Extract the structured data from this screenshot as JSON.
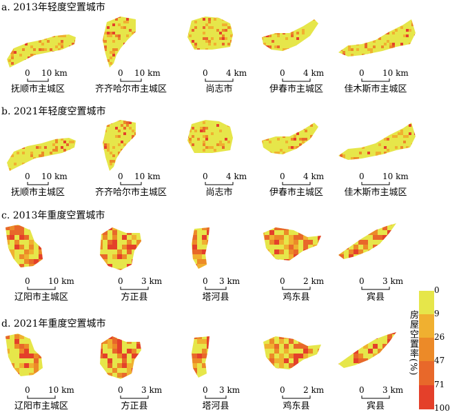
{
  "sections": [
    {
      "title": "a. 2013年轻度空置城市"
    },
    {
      "title": "b. 2021年轻度空置城市"
    },
    {
      "title": "c. 2013年重度空置城市"
    },
    {
      "title": "d. 2021年重度空置城市"
    }
  ],
  "cities_light": [
    "抚顺市主城区",
    "齐齐哈尔市主城区",
    "尚志市",
    "伊春市主城区",
    "佳木斯市主城区"
  ],
  "cities_heavy": [
    "辽阳市主城区",
    "方正县",
    "塔河县",
    "鸡东县",
    "宾县"
  ],
  "scales_light": [
    {
      "zero": "0",
      "dist": "10 km"
    },
    {
      "zero": "0",
      "dist": "10 km"
    },
    {
      "zero": "0",
      "dist": "4 km"
    },
    {
      "zero": "0",
      "dist": "4 km"
    },
    {
      "zero": "0",
      "dist": "10 km"
    }
  ],
  "scales_heavy": [
    {
      "zero": "0",
      "dist": "10 km"
    },
    {
      "zero": "0",
      "dist": "3 km"
    },
    {
      "zero": "0",
      "dist": "3 km"
    },
    {
      "zero": "0",
      "dist": "2 km"
    },
    {
      "zero": "0",
      "dist": "3 km"
    }
  ],
  "legend": {
    "title": "房屋空置率(%)",
    "ticks": [
      "0",
      "9",
      "26",
      "47",
      "71",
      "100"
    ],
    "colors": [
      "#e6e64a",
      "#f0b030",
      "#ec8a28",
      "#e8682a",
      "#e4402a"
    ]
  }
}
